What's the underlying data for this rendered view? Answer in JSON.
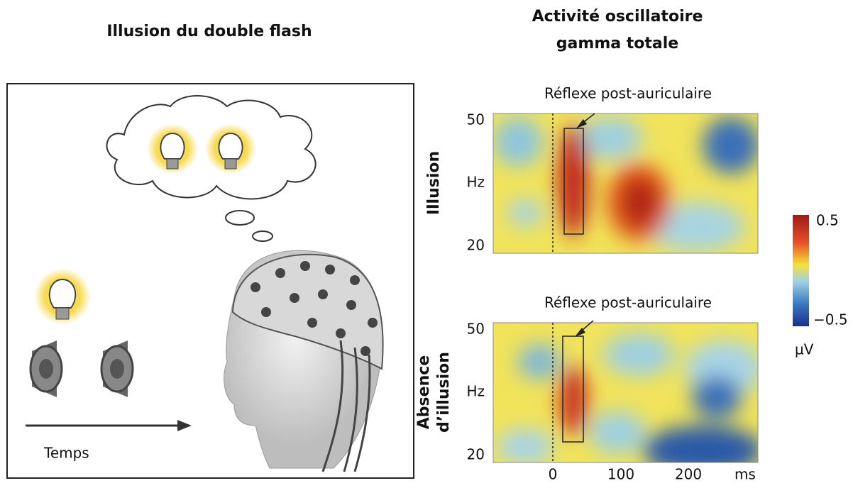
{
  "left_panel": {
    "title": "Illusion du double flash",
    "time_label": "Temps"
  },
  "right_panel": {
    "title": [
      "Activité oscillatoire",
      "gamma totale"
    ],
    "panels": [
      {
        "row_label": [
          "Illusion"
        ],
        "annotation": "Réflexe post-auriculaire",
        "y_ticks": [
          "50",
          "Hz",
          "20"
        ]
      },
      {
        "row_label": [
          "Absence",
          "d’illusion"
        ],
        "annotation": "Réflexe post-auriculaire",
        "y_ticks": [
          "50",
          "Hz",
          "20"
        ]
      }
    ],
    "x_ticks": [
      "0",
      "100",
      "200",
      "ms"
    ],
    "colorbar": {
      "max": "0.5",
      "min": "−0.5",
      "unit": "µV"
    }
  }
}
